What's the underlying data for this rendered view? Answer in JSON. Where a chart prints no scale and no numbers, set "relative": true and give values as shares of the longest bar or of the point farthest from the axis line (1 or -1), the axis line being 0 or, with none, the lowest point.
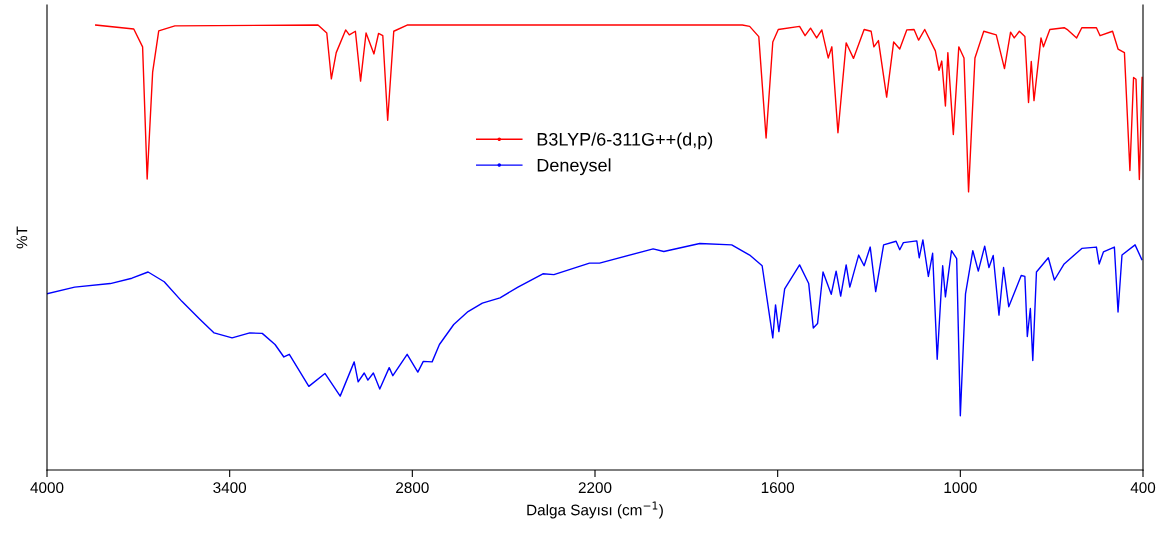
{
  "chart_data": {
    "type": "line",
    "relative": true,
    "xlabel": "Dalga Sayısı (cm$^{−1}$)",
    "ylabel": "%T",
    "xlim": [
      4000,
      400
    ],
    "xticks": [
      4000,
      3400,
      2800,
      2200,
      1600,
      1000,
      400
    ],
    "tick_labels": "x",
    "legend": "center",
    "grid": false,
    "series": [
      {
        "name": "B3LYP/6-311G++(d,p)",
        "color": "#ff0000",
        "x": [
          3840,
          3715,
          3686,
          3671,
          3653,
          3633,
          3580,
          3110,
          3081,
          3066,
          3050,
          3019,
          3007,
          2987,
          2970,
          2952,
          2926,
          2911,
          2897,
          2881,
          2861,
          2817,
          1716,
          1692,
          1662,
          1638,
          1616,
          1598,
          1528,
          1510,
          1492,
          1472,
          1455,
          1434,
          1422,
          1402,
          1375,
          1351,
          1316,
          1293,
          1284,
          1269,
          1242,
          1219,
          1199,
          1176,
          1152,
          1137,
          1117,
          1082,
          1070,
          1061,
          1049,
          1041,
          1023,
          1005,
          988,
          973,
          952,
          923,
          882,
          855,
          835,
          823,
          806,
          788,
          776,
          767,
          758,
          735,
          727,
          706,
          659,
          647,
          618,
          601,
          553,
          541,
          500,
          482,
          461,
          443,
          431,
          423,
          412,
          403
        ],
        "values": [
          1.0,
          0.991,
          0.951,
          0.654,
          0.894,
          0.987,
          0.998,
          1.0,
          0.982,
          0.879,
          0.938,
          0.989,
          0.978,
          0.986,
          0.874,
          0.982,
          0.935,
          0.981,
          0.976,
          0.786,
          0.986,
          1.0,
          1.0,
          0.997,
          0.974,
          0.746,
          0.962,
          0.99,
          0.997,
          0.976,
          0.993,
          0.971,
          0.989,
          0.926,
          0.951,
          0.758,
          0.96,
          0.925,
          0.99,
          0.986,
          0.951,
          0.965,
          0.838,
          0.962,
          0.946,
          0.989,
          0.99,
          0.966,
          0.99,
          0.942,
          0.898,
          0.919,
          0.818,
          0.938,
          0.754,
          0.951,
          0.926,
          0.625,
          0.926,
          0.986,
          0.978,
          0.902,
          0.984,
          0.971,
          0.986,
          0.974,
          0.826,
          0.918,
          0.83,
          0.971,
          0.951,
          0.99,
          0.994,
          0.989,
          0.971,
          0.994,
          0.994,
          0.976,
          0.986,
          0.946,
          0.938,
          0.673,
          0.882,
          0.878,
          0.653,
          0.882
        ]
      },
      {
        "name": "Deneysel",
        "color": "#0000ff",
        "x": [
          4000,
          3909,
          3792,
          3721,
          3668,
          3615,
          3557,
          3498,
          3451,
          3392,
          3334,
          3293,
          3251,
          3222,
          3204,
          3140,
          3087,
          3037,
          2991,
          2978,
          2958,
          2946,
          2928,
          2907,
          2876,
          2864,
          2817,
          2782,
          2764,
          2735,
          2711,
          2664,
          2617,
          2570,
          2512,
          2453,
          2371,
          2335,
          2218,
          2185,
          2009,
          1974,
          1856,
          1751,
          1692,
          1651,
          1616,
          1607,
          1596,
          1577,
          1528,
          1498,
          1483,
          1469,
          1451,
          1424,
          1408,
          1393,
          1375,
          1363,
          1334,
          1316,
          1296,
          1278,
          1252,
          1211,
          1199,
          1187,
          1143,
          1135,
          1123,
          1105,
          1091,
          1076,
          1058,
          1049,
          1029,
          1012,
          1000,
          983,
          959,
          941,
          920,
          906,
          892,
          873,
          858,
          841,
          800,
          788,
          780,
          770,
          762,
          750,
          711,
          691,
          659,
          601,
          553,
          544,
          530,
          494,
          482,
          469,
          426,
          404
        ],
        "values": [
          0.396,
          0.411,
          0.419,
          0.431,
          0.445,
          0.423,
          0.379,
          0.339,
          0.308,
          0.297,
          0.308,
          0.307,
          0.282,
          0.254,
          0.26,
          0.188,
          0.217,
          0.166,
          0.243,
          0.198,
          0.218,
          0.202,
          0.218,
          0.182,
          0.23,
          0.212,
          0.26,
          0.22,
          0.244,
          0.243,
          0.282,
          0.327,
          0.356,
          0.375,
          0.387,
          0.411,
          0.441,
          0.439,
          0.465,
          0.465,
          0.497,
          0.491,
          0.509,
          0.506,
          0.483,
          0.459,
          0.297,
          0.371,
          0.311,
          0.407,
          0.461,
          0.419,
          0.319,
          0.329,
          0.445,
          0.395,
          0.447,
          0.391,
          0.461,
          0.411,
          0.483,
          0.459,
          0.501,
          0.401,
          0.506,
          0.514,
          0.495,
          0.511,
          0.515,
          0.477,
          0.517,
          0.435,
          0.487,
          0.249,
          0.459,
          0.389,
          0.493,
          0.475,
          0.122,
          0.396,
          0.493,
          0.447,
          0.503,
          0.455,
          0.482,
          0.348,
          0.455,
          0.367,
          0.437,
          0.435,
          0.3,
          0.363,
          0.246,
          0.445,
          0.477,
          0.427,
          0.463,
          0.498,
          0.501,
          0.463,
          0.49,
          0.501,
          0.355,
          0.483,
          0.506,
          0.473
        ]
      }
    ]
  }
}
